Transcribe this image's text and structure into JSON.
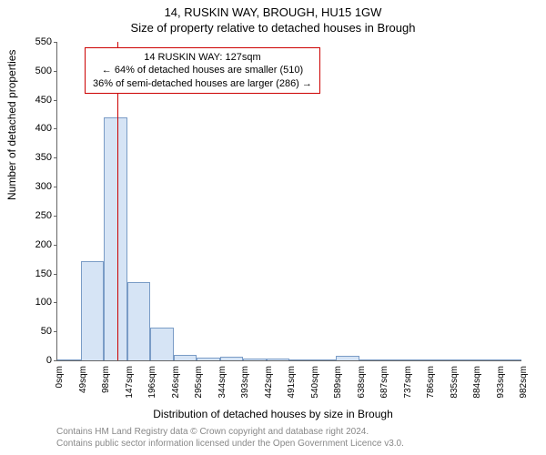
{
  "titles": {
    "main": "14, RUSKIN WAY, BROUGH, HU15 1GW",
    "sub": "Size of property relative to detached houses in Brough"
  },
  "axes": {
    "ylabel": "Number of detached properties",
    "xlabel": "Distribution of detached houses by size in Brough",
    "ylim": [
      0,
      550
    ],
    "yticks": [
      0,
      50,
      100,
      150,
      200,
      250,
      300,
      350,
      400,
      450,
      500,
      550
    ],
    "xtick_labels": [
      "0sqm",
      "49sqm",
      "98sqm",
      "147sqm",
      "196sqm",
      "246sqm",
      "295sqm",
      "344sqm",
      "393sqm",
      "442sqm",
      "491sqm",
      "540sqm",
      "589sqm",
      "638sqm",
      "687sqm",
      "737sqm",
      "786sqm",
      "835sqm",
      "884sqm",
      "933sqm",
      "982sqm"
    ]
  },
  "histogram": {
    "type": "histogram",
    "values": [
      0,
      172,
      420,
      135,
      57,
      10,
      5,
      7,
      3,
      3,
      2,
      2,
      8,
      2,
      1,
      0,
      1,
      0,
      0,
      0
    ],
    "bar_fill": "#d6e4f5",
    "bar_stroke": "#7a9cc6",
    "bar_stroke_width": 1
  },
  "marker": {
    "position_sqm": 127,
    "color": "#cc0000"
  },
  "annotation": {
    "line1": "14 RUSKIN WAY: 127sqm",
    "line2": "← 64% of detached houses are smaller (510)",
    "line3": "36% of semi-detached houses are larger (286) →",
    "border_color": "#cc0000"
  },
  "attribution": {
    "line1": "Contains HM Land Registry data © Crown copyright and database right 2024.",
    "line2": "Contains public sector information licensed under the Open Government Licence v3.0."
  },
  "colors": {
    "background": "#ffffff",
    "axis": "#666666",
    "text": "#000000",
    "attribution_text": "#888888"
  },
  "fonts": {
    "title_size": 13,
    "label_size": 12,
    "tick_size": 11,
    "annotation_size": 11,
    "attribution_size": 10
  }
}
